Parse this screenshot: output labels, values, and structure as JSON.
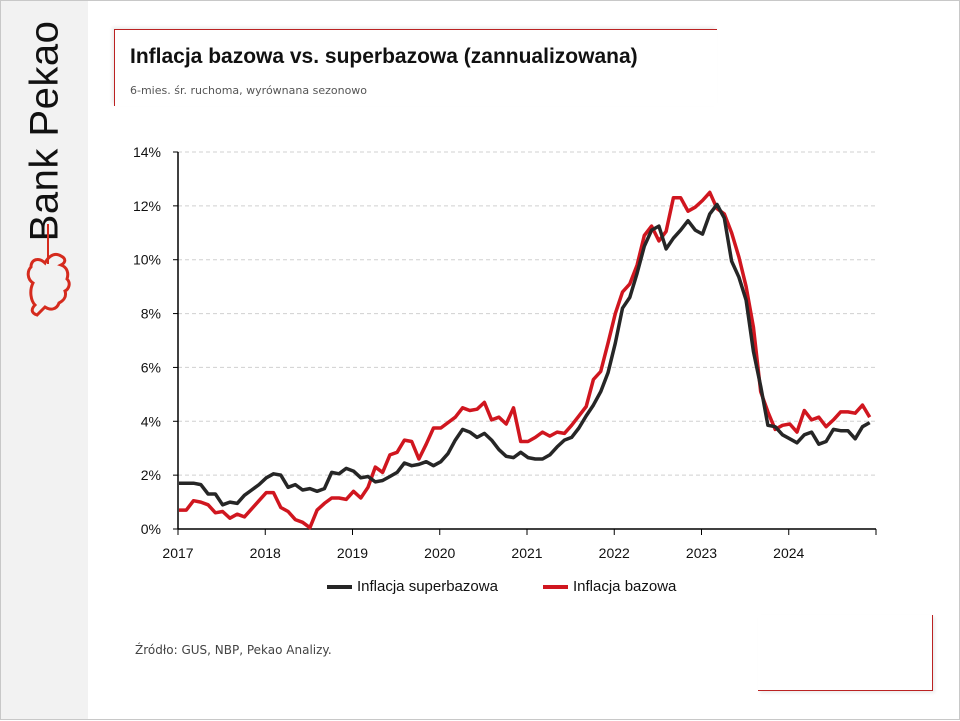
{
  "brand": {
    "name": "Bank Pekao"
  },
  "colors": {
    "superbazowa": "#262626",
    "bazowa": "#d0161f"
  },
  "chart_data": {
    "type": "line",
    "title": "Inflacja bazowa vs. superbazowa (zannualizowana)",
    "subtitle": "6-mies. śr. ruchoma,  wyrównana  sezonowo",
    "xlabel": "",
    "ylabel": "",
    "ylim": [
      0,
      14
    ],
    "yticks": [
      "0%",
      "2%",
      "4%",
      "6%",
      "8%",
      "10%",
      "12%",
      "14%"
    ],
    "xticks": [
      "2017",
      "2018",
      "2019",
      "2020",
      "2021",
      "2022",
      "2023",
      "2024"
    ],
    "x_range": [
      "2017-01",
      "2024-12"
    ],
    "grid": true,
    "legend_placement": "bottom",
    "series": [
      {
        "name": "Inflacja superbazowa",
        "values": [
          1.7,
          1.7,
          1.7,
          1.65,
          1.3,
          1.3,
          0.9,
          1.0,
          0.95,
          1.25,
          1.45,
          1.65,
          1.9,
          2.05,
          2.0,
          1.55,
          1.65,
          1.45,
          1.5,
          1.4,
          1.5,
          2.1,
          2.05,
          2.25,
          2.15,
          1.9,
          1.95,
          1.75,
          1.8,
          1.95,
          2.1,
          2.45,
          2.35,
          2.4,
          2.5,
          2.35,
          2.5,
          2.8,
          3.3,
          3.7,
          3.6,
          3.4,
          3.55,
          3.3,
          2.95,
          2.7,
          2.65,
          2.85,
          2.65,
          2.6,
          2.6,
          2.75,
          3.05,
          3.3,
          3.4,
          3.75,
          4.2,
          4.6,
          5.1,
          5.8,
          6.9,
          8.2,
          8.6,
          9.5,
          10.5,
          11.1,
          11.25,
          10.4,
          10.8,
          11.1,
          11.45,
          11.1,
          10.95,
          11.7,
          12.05,
          11.55,
          9.95,
          9.35,
          8.5,
          6.6,
          5.3,
          3.85,
          3.8,
          3.5,
          3.35,
          3.2,
          3.5,
          3.6,
          3.15,
          3.25,
          3.7,
          3.65,
          3.65,
          3.35,
          3.8,
          3.95
        ]
      },
      {
        "name": "Inflacja bazowa",
        "values": [
          0.7,
          0.7,
          1.05,
          1.0,
          0.9,
          0.6,
          0.65,
          0.4,
          0.55,
          0.45,
          0.75,
          1.05,
          1.35,
          1.35,
          0.8,
          0.65,
          0.35,
          0.25,
          0.05,
          0.7,
          0.95,
          1.15,
          1.15,
          1.1,
          1.4,
          1.15,
          1.55,
          2.3,
          2.1,
          2.75,
          2.85,
          3.3,
          3.25,
          2.6,
          3.15,
          3.75,
          3.75,
          3.95,
          4.15,
          4.5,
          4.4,
          4.45,
          4.7,
          4.05,
          4.15,
          3.9,
          4.5,
          3.25,
          3.25,
          3.4,
          3.6,
          3.45,
          3.6,
          3.55,
          3.85,
          4.2,
          4.55,
          5.55,
          5.85,
          6.9,
          8.0,
          8.8,
          9.1,
          9.8,
          10.9,
          11.25,
          10.7,
          11.05,
          12.3,
          12.3,
          11.8,
          11.95,
          12.2,
          12.5,
          11.9,
          11.7,
          11.0,
          10.1,
          9.0,
          7.5,
          5.1,
          4.35,
          3.7,
          3.85,
          3.9,
          3.6,
          4.4,
          4.05,
          4.15,
          3.8,
          4.05,
          4.35,
          4.35,
          4.3,
          4.6,
          4.15
        ]
      }
    ]
  },
  "source": "Źródło: GUS, NBP, Pekao Analizy."
}
